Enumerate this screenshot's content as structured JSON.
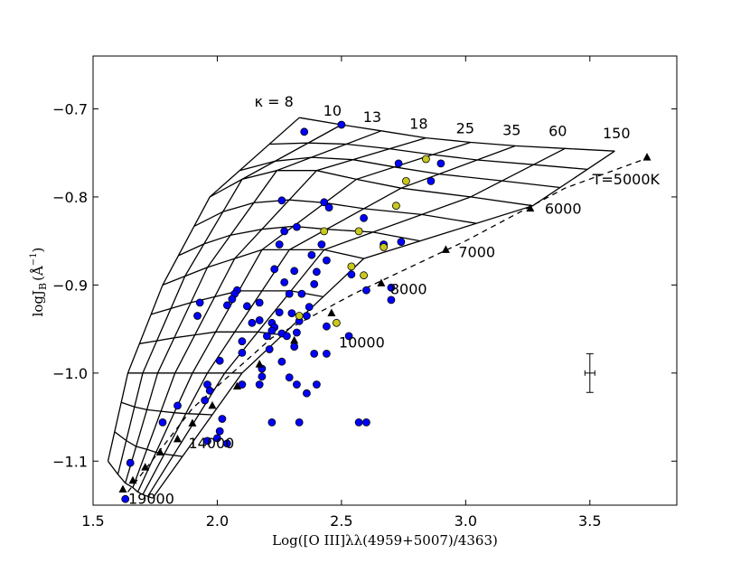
{
  "chart_data": {
    "type": "scatter",
    "title": "",
    "xlabel": "Log([O III]λλ(4959+5007)/4363)",
    "ylabel": "logJ_B (Å^-1)",
    "ylabel_main": "logJ",
    "ylabel_sub": "B",
    "ylabel_unit": "(Å",
    "ylabel_exp": "−1",
    "ylabel_close": ")",
    "xlim": [
      1.5,
      3.85
    ],
    "ylim": [
      -1.15,
      -0.64
    ],
    "x_ticks": [
      1.5,
      2.0,
      2.5,
      3.0,
      3.5
    ],
    "x_tick_labels": [
      "1.5",
      "2.0",
      "2.5",
      "3.0",
      "3.5"
    ],
    "y_ticks": [
      -0.7,
      -0.8,
      -0.9,
      -1.0,
      -1.1
    ],
    "y_tick_labels": [
      "−0.7",
      "−0.8",
      "−0.9",
      "−1.0",
      "−1.1"
    ],
    "kappa_values": [
      8,
      10,
      13,
      18,
      25,
      35,
      60,
      150
    ],
    "kappa_labels": [
      "κ = 8",
      "10",
      "13",
      "18",
      "25",
      "35",
      "60",
      "150"
    ],
    "grid_model": {
      "kappa_lines": [
        [
          [
            1.56,
            -1.1
          ],
          [
            1.64,
            -1.0
          ],
          [
            1.78,
            -0.9
          ],
          [
            1.97,
            -0.8
          ],
          [
            2.33,
            -0.71
          ]
        ],
        [
          [
            1.6,
            -1.115
          ],
          [
            1.7,
            -1.0
          ],
          [
            1.87,
            -0.89
          ],
          [
            2.1,
            -0.78
          ],
          [
            2.5,
            -0.718
          ]
        ],
        [
          [
            1.63,
            -1.125
          ],
          [
            1.76,
            -1.0
          ],
          [
            1.96,
            -0.88
          ],
          [
            2.24,
            -0.77
          ],
          [
            2.66,
            -0.725
          ]
        ],
        [
          [
            1.66,
            -1.13
          ],
          [
            1.83,
            -1.0
          ],
          [
            2.07,
            -0.87
          ],
          [
            2.4,
            -0.77
          ],
          [
            2.84,
            -0.733
          ]
        ],
        [
          [
            1.68,
            -1.135
          ],
          [
            1.9,
            -1.0
          ],
          [
            2.18,
            -0.86
          ],
          [
            2.56,
            -0.78
          ],
          [
            3.02,
            -0.738
          ]
        ],
        [
          [
            1.7,
            -1.138
          ],
          [
            1.96,
            -1.0
          ],
          [
            2.29,
            -0.86
          ],
          [
            2.74,
            -0.79
          ],
          [
            3.2,
            -0.742
          ]
        ],
        [
          [
            1.72,
            -1.14
          ],
          [
            2.03,
            -1.0
          ],
          [
            2.43,
            -0.86
          ],
          [
            3.02,
            -0.8
          ],
          [
            3.4,
            -0.745
          ]
        ],
        [
          [
            1.74,
            -1.142
          ],
          [
            2.1,
            -1.0
          ],
          [
            2.59,
            -0.87
          ],
          [
            3.27,
            -0.81
          ],
          [
            3.6,
            -0.748
          ]
        ]
      ],
      "temperature_line": [
        [
          1.64,
          -1.135
        ],
        [
          1.9,
          -1.04
        ],
        [
          2.22,
          -0.96
        ],
        [
          2.55,
          -0.91
        ],
        [
          3.0,
          -0.85
        ],
        [
          3.4,
          -0.79
        ],
        [
          3.74,
          -0.755
        ]
      ]
    },
    "legend_note": "T=5000K",
    "temp_labels": [
      "T=5000K",
      "6000",
      "7000",
      "8000",
      "10000",
      "14000",
      "19000"
    ],
    "temp_points": [
      {
        "x": 3.73,
        "y": -0.755
      },
      {
        "x": 3.26,
        "y": -0.813
      },
      {
        "x": 2.92,
        "y": -0.86
      },
      {
        "x": 2.66,
        "y": -0.898
      },
      {
        "x": 2.46,
        "y": -0.932
      },
      {
        "x": 2.31,
        "y": -0.963
      },
      {
        "x": 2.17,
        "y": -0.99
      },
      {
        "x": 2.08,
        "y": -1.015
      },
      {
        "x": 1.98,
        "y": -1.037
      },
      {
        "x": 1.9,
        "y": -1.057
      },
      {
        "x": 1.84,
        "y": -1.075
      },
      {
        "x": 1.77,
        "y": -1.09
      },
      {
        "x": 1.71,
        "y": -1.107
      },
      {
        "x": 1.66,
        "y": -1.122
      },
      {
        "x": 1.62,
        "y": -1.132
      }
    ],
    "series": [
      {
        "name": "blue",
        "color": "#0000ff",
        "points": [
          {
            "x": 2.35,
            "y": -0.726
          },
          {
            "x": 2.5,
            "y": -0.718
          },
          {
            "x": 2.73,
            "y": -0.762
          },
          {
            "x": 2.9,
            "y": -0.762
          },
          {
            "x": 2.86,
            "y": -0.782
          },
          {
            "x": 2.26,
            "y": -0.804
          },
          {
            "x": 2.43,
            "y": -0.806
          },
          {
            "x": 2.45,
            "y": -0.812
          },
          {
            "x": 2.59,
            "y": -0.824
          },
          {
            "x": 2.32,
            "y": -0.834
          },
          {
            "x": 2.27,
            "y": -0.839
          },
          {
            "x": 2.25,
            "y": -0.854
          },
          {
            "x": 2.74,
            "y": -0.851
          },
          {
            "x": 2.42,
            "y": -0.854
          },
          {
            "x": 2.67,
            "y": -0.854
          },
          {
            "x": 2.38,
            "y": -0.866
          },
          {
            "x": 2.44,
            "y": -0.872
          },
          {
            "x": 2.23,
            "y": -0.882
          },
          {
            "x": 2.31,
            "y": -0.884
          },
          {
            "x": 2.4,
            "y": -0.885
          },
          {
            "x": 2.54,
            "y": -0.888
          },
          {
            "x": 2.27,
            "y": -0.897
          },
          {
            "x": 2.39,
            "y": -0.899
          },
          {
            "x": 2.6,
            "y": -0.906
          },
          {
            "x": 2.7,
            "y": -0.903
          },
          {
            "x": 2.29,
            "y": -0.91
          },
          {
            "x": 2.34,
            "y": -0.91
          },
          {
            "x": 2.08,
            "y": -0.906
          },
          {
            "x": 2.07,
            "y": -0.91
          },
          {
            "x": 2.06,
            "y": -0.916
          },
          {
            "x": 2.17,
            "y": -0.92
          },
          {
            "x": 2.12,
            "y": -0.924
          },
          {
            "x": 2.04,
            "y": -0.923
          },
          {
            "x": 1.93,
            "y": -0.92
          },
          {
            "x": 2.7,
            "y": -0.917
          },
          {
            "x": 2.37,
            "y": -0.925
          },
          {
            "x": 2.25,
            "y": -0.931
          },
          {
            "x": 1.92,
            "y": -0.935
          },
          {
            "x": 2.3,
            "y": -0.932
          },
          {
            "x": 2.36,
            "y": -0.935
          },
          {
            "x": 2.44,
            "y": -0.947
          },
          {
            "x": 2.17,
            "y": -0.94
          },
          {
            "x": 2.14,
            "y": -0.943
          },
          {
            "x": 2.22,
            "y": -0.943
          },
          {
            "x": 2.33,
            "y": -0.941
          },
          {
            "x": 2.23,
            "y": -0.948
          },
          {
            "x": 2.22,
            "y": -0.952
          },
          {
            "x": 2.26,
            "y": -0.955
          },
          {
            "x": 2.32,
            "y": -0.954
          },
          {
            "x": 2.2,
            "y": -0.958
          },
          {
            "x": 2.28,
            "y": -0.958
          },
          {
            "x": 2.53,
            "y": -0.958
          },
          {
            "x": 2.1,
            "y": -0.964
          },
          {
            "x": 2.31,
            "y": -0.97
          },
          {
            "x": 2.21,
            "y": -0.973
          },
          {
            "x": 2.1,
            "y": -0.977
          },
          {
            "x": 2.39,
            "y": -0.978
          },
          {
            "x": 2.44,
            "y": -0.978
          },
          {
            "x": 2.26,
            "y": -0.987
          },
          {
            "x": 2.01,
            "y": -0.986
          },
          {
            "x": 2.18,
            "y": -0.995
          },
          {
            "x": 2.18,
            "y": -1.004
          },
          {
            "x": 2.29,
            "y": -1.005
          },
          {
            "x": 2.1,
            "y": -1.013
          },
          {
            "x": 2.17,
            "y": -1.013
          },
          {
            "x": 2.32,
            "y": -1.013
          },
          {
            "x": 2.4,
            "y": -1.013
          },
          {
            "x": 1.96,
            "y": -1.013
          },
          {
            "x": 1.97,
            "y": -1.02
          },
          {
            "x": 2.36,
            "y": -1.023
          },
          {
            "x": 1.95,
            "y": -1.031
          },
          {
            "x": 1.84,
            "y": -1.037
          },
          {
            "x": 2.02,
            "y": -1.052
          },
          {
            "x": 1.78,
            "y": -1.056
          },
          {
            "x": 2.22,
            "y": -1.056
          },
          {
            "x": 2.33,
            "y": -1.056
          },
          {
            "x": 2.57,
            "y": -1.056
          },
          {
            "x": 2.6,
            "y": -1.056
          },
          {
            "x": 2.01,
            "y": -1.066
          },
          {
            "x": 1.96,
            "y": -1.077
          },
          {
            "x": 2.0,
            "y": -1.074
          },
          {
            "x": 2.04,
            "y": -1.08
          },
          {
            "x": 1.65,
            "y": -1.102
          },
          {
            "x": 1.63,
            "y": -1.143
          }
        ]
      },
      {
        "name": "yellow",
        "color": "#c8c81e",
        "points": [
          {
            "x": 2.84,
            "y": -0.757
          },
          {
            "x": 2.76,
            "y": -0.782
          },
          {
            "x": 2.72,
            "y": -0.81
          },
          {
            "x": 2.43,
            "y": -0.839
          },
          {
            "x": 2.57,
            "y": -0.839
          },
          {
            "x": 2.67,
            "y": -0.857
          },
          {
            "x": 2.54,
            "y": -0.879
          },
          {
            "x": 2.59,
            "y": -0.889
          },
          {
            "x": 2.33,
            "y": -0.935
          },
          {
            "x": 2.48,
            "y": -0.943
          }
        ]
      }
    ],
    "error_bar": {
      "x": 3.5,
      "y": -1.0,
      "x_err": 0.02,
      "y_err": 0.022
    }
  }
}
